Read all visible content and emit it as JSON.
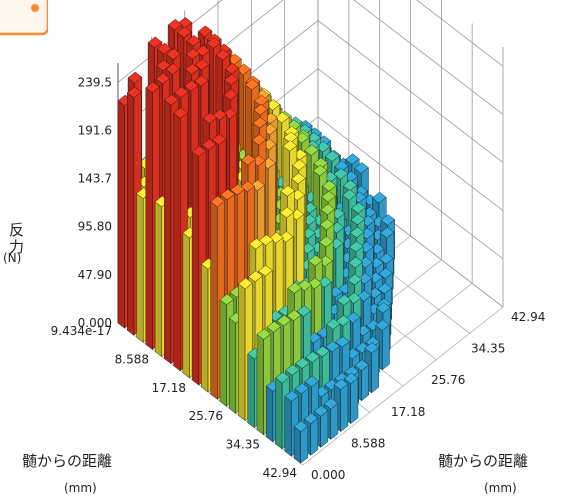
{
  "chart_data": {
    "type": "bar3d",
    "zlabel": "反力",
    "zunit": "(N)",
    "zticks": [
      "0.000",
      "47.90",
      "95.80",
      "143.7",
      "191.6",
      "239.5"
    ],
    "zlim": [
      0,
      260
    ],
    "xlabel": "髄からの距離",
    "xunit": "(mm)",
    "xticks": [
      "9.434e-17",
      "8.588",
      "17.18",
      "25.76",
      "34.35",
      "42.94"
    ],
    "ylabel": "髄からの距離",
    "yunit": "(mm)",
    "yticks": [
      "0.000",
      "8.588",
      "17.18",
      "25.76",
      "34.35",
      "42.94"
    ],
    "grid": true,
    "colormap": [
      "#3366dd",
      "#33aadd",
      "#44ccaa",
      "#99dd44",
      "#ffee33",
      "#ffaa33",
      "#ff7722",
      "#ee3322"
    ],
    "surface_description": "Quarter-disc of bars; each annulus peaks near ring radius 8.588-12 mm (~240 N) then rings alternate high/low decreasing toward 42.94 mm (~40 N)"
  },
  "badge_color": "#ff8833"
}
